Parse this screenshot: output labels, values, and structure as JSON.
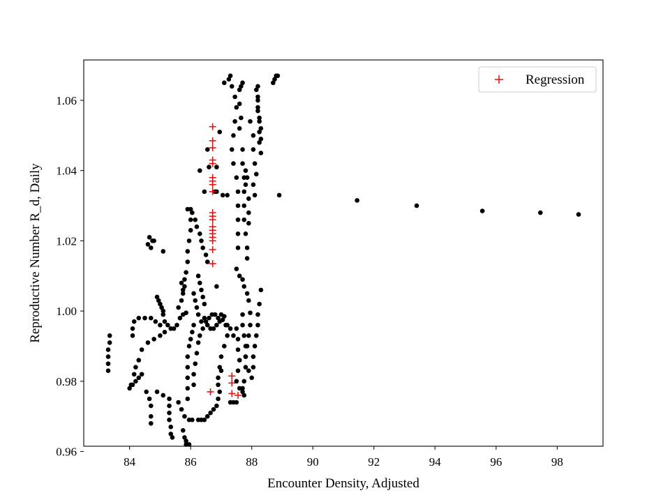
{
  "chart_data": {
    "type": "scatter",
    "title": "",
    "xlabel": "Encounter Density, Adjusted",
    "ylabel": "Reproductive Number R_d, Daily",
    "xlim": [
      82.5,
      99.5
    ],
    "ylim": [
      0.9615,
      1.0715
    ],
    "x_ticks": [
      84,
      86,
      88,
      90,
      92,
      94,
      96,
      98
    ],
    "y_ticks": [
      0.96,
      0.98,
      1.0,
      1.02,
      1.04,
      1.06
    ],
    "x_tick_labels": [
      "84",
      "86",
      "88",
      "90",
      "92",
      "94",
      "96",
      "98"
    ],
    "y_tick_labels": [
      "0.96",
      "0.98",
      "1.00",
      "1.02",
      "1.04",
      "1.06"
    ],
    "grid": false,
    "legend": {
      "position": "top-right",
      "entries": [
        "Regression"
      ]
    },
    "colors": {
      "data": "#000000",
      "regression": "#ff0000"
    },
    "series": [
      {
        "marker": "dot",
        "color": "#000000",
        "points": [
          [
            83.3,
            0.983
          ],
          [
            83.3,
            0.985
          ],
          [
            83.3,
            0.987
          ],
          [
            83.3,
            0.989
          ],
          [
            83.35,
            0.991
          ],
          [
            83.35,
            0.993
          ],
          [
            84.1,
            0.993
          ],
          [
            84.1,
            0.995
          ],
          [
            84.15,
            0.997
          ],
          [
            84.3,
            0.998
          ],
          [
            84.5,
            0.998
          ],
          [
            84.7,
            0.998
          ],
          [
            84.85,
            0.997
          ],
          [
            85.0,
            0.996
          ],
          [
            84.6,
            1.019
          ],
          [
            84.7,
            1.018
          ],
          [
            84.65,
            1.021
          ],
          [
            84.75,
            1.02
          ],
          [
            84.8,
            1.02
          ],
          [
            85.1,
            1.017
          ],
          [
            84.9,
            1.004
          ],
          [
            84.95,
            1.003
          ],
          [
            85.0,
            1.002
          ],
          [
            85.05,
            1.001
          ],
          [
            85.1,
            1.0
          ],
          [
            85.1,
            0.999
          ],
          [
            85.15,
            0.997
          ],
          [
            85.25,
            0.996
          ],
          [
            85.35,
            0.995
          ],
          [
            85.45,
            0.995
          ],
          [
            85.55,
            0.996
          ],
          [
            85.65,
            0.998
          ],
          [
            85.75,
            0.999
          ],
          [
            85.85,
            0.9995
          ],
          [
            84.6,
            0.991
          ],
          [
            84.8,
            0.992
          ],
          [
            85.0,
            0.993
          ],
          [
            85.15,
            0.994
          ],
          [
            84.4,
            0.989
          ],
          [
            84.3,
            0.986
          ],
          [
            84.2,
            0.984
          ],
          [
            84.15,
            0.982
          ],
          [
            84.05,
            0.979
          ],
          [
            84.0,
            0.978
          ],
          [
            84.1,
            0.979
          ],
          [
            84.2,
            0.98
          ],
          [
            84.3,
            0.981
          ],
          [
            84.4,
            0.982
          ],
          [
            84.55,
            0.977
          ],
          [
            84.65,
            0.975
          ],
          [
            84.7,
            0.973
          ],
          [
            84.7,
            0.97
          ],
          [
            84.7,
            0.968
          ],
          [
            84.9,
            0.977
          ],
          [
            85.1,
            0.976
          ],
          [
            85.3,
            0.975
          ],
          [
            85.3,
            0.973
          ],
          [
            85.3,
            0.971
          ],
          [
            85.3,
            0.969
          ],
          [
            85.35,
            0.967
          ],
          [
            85.35,
            0.965
          ],
          [
            85.4,
            0.964
          ],
          [
            85.6,
            0.974
          ],
          [
            85.7,
            0.972
          ],
          [
            85.8,
            0.97
          ],
          [
            85.95,
            0.969
          ],
          [
            86.05,
            0.969
          ],
          [
            85.75,
            0.966
          ],
          [
            85.8,
            0.964
          ],
          [
            85.85,
            0.963
          ],
          [
            85.95,
            0.962
          ],
          [
            85.85,
            0.962
          ],
          [
            85.9,
            0.975
          ],
          [
            85.9,
            0.978
          ],
          [
            85.9,
            0.981
          ],
          [
            85.9,
            0.984
          ],
          [
            85.9,
            0.987
          ],
          [
            85.95,
            0.99
          ],
          [
            86.0,
            0.992
          ],
          [
            86.05,
            0.994
          ],
          [
            86.1,
            0.996
          ],
          [
            86.1,
            0.979
          ],
          [
            86.1,
            0.982
          ],
          [
            86.15,
            0.985
          ],
          [
            86.2,
            0.988
          ],
          [
            86.25,
            0.991
          ],
          [
            86.3,
            0.993
          ],
          [
            85.6,
            1.001
          ],
          [
            85.7,
            1.003
          ],
          [
            85.75,
            1.005
          ],
          [
            85.8,
            1.007
          ],
          [
            85.8,
            1.009
          ],
          [
            85.85,
            1.011
          ],
          [
            85.9,
            1.014
          ],
          [
            85.9,
            1.017
          ],
          [
            85.95,
            1.02
          ],
          [
            86.0,
            1.023
          ],
          [
            86.0,
            1.026
          ],
          [
            86.0,
            1.029
          ],
          [
            85.7,
            1.008
          ],
          [
            85.75,
            1.006
          ],
          [
            86.1,
            1.005
          ],
          [
            86.15,
            1.003
          ],
          [
            86.2,
            1.001
          ],
          [
            86.25,
            0.999
          ],
          [
            86.35,
            0.997
          ],
          [
            86.4,
            0.995
          ],
          [
            85.9,
            1.029
          ],
          [
            86.05,
            1.028
          ],
          [
            86.15,
            1.026
          ],
          [
            86.2,
            1.024
          ],
          [
            86.3,
            1.022
          ],
          [
            86.35,
            1.02
          ],
          [
            86.4,
            1.018
          ],
          [
            86.5,
            1.016
          ],
          [
            86.55,
            1.014
          ],
          [
            86.25,
            1.01
          ],
          [
            86.3,
            1.008
          ],
          [
            86.35,
            1.006
          ],
          [
            86.4,
            1.004
          ],
          [
            86.45,
            1.002
          ],
          [
            86.3,
            1.04
          ],
          [
            86.45,
            1.034
          ],
          [
            86.55,
            1.046
          ],
          [
            86.6,
            1.041
          ],
          [
            86.45,
            0.998
          ],
          [
            86.55,
            0.996
          ],
          [
            86.65,
            0.995
          ],
          [
            86.75,
            0.995
          ],
          [
            86.85,
            0.996
          ],
          [
            86.95,
            0.997
          ],
          [
            87.05,
            0.9975
          ],
          [
            87.15,
            0.996
          ],
          [
            86.5,
            0.997
          ],
          [
            86.6,
            0.998
          ],
          [
            86.7,
            0.999
          ],
          [
            86.8,
            0.999
          ],
          [
            86.9,
            0.998
          ],
          [
            87.0,
            0.999
          ],
          [
            87.1,
            0.9985
          ],
          [
            87.2,
            0.996
          ],
          [
            87.3,
            0.995
          ],
          [
            87.4,
            0.993
          ],
          [
            87.2,
            0.993
          ],
          [
            87.1,
            0.99
          ],
          [
            87.0,
            0.987
          ],
          [
            86.95,
            0.984
          ],
          [
            86.9,
            0.981
          ],
          [
            86.9,
            0.979
          ],
          [
            86.95,
            0.977
          ],
          [
            86.9,
            0.975
          ],
          [
            86.85,
            0.973
          ],
          [
            86.75,
            0.972
          ],
          [
            86.65,
            0.971
          ],
          [
            86.55,
            0.97
          ],
          [
            86.45,
            0.969
          ],
          [
            86.35,
            0.969
          ],
          [
            86.25,
            0.969
          ],
          [
            87.0,
            0.983
          ],
          [
            87.3,
            0.974
          ],
          [
            87.4,
            0.974
          ],
          [
            87.5,
            0.974
          ],
          [
            86.85,
            1.007
          ],
          [
            86.95,
            1.051
          ],
          [
            86.85,
            1.041
          ],
          [
            86.8,
            1.034
          ],
          [
            86.85,
            1.034
          ],
          [
            87.05,
            1.033
          ],
          [
            87.2,
            1.033
          ],
          [
            87.1,
            1.065
          ],
          [
            87.25,
            1.066
          ],
          [
            87.3,
            1.067
          ],
          [
            87.35,
            1.064
          ],
          [
            87.45,
            1.061
          ],
          [
            87.5,
            1.058
          ],
          [
            87.45,
            1.054
          ],
          [
            87.4,
            1.05
          ],
          [
            87.35,
            1.046
          ],
          [
            87.4,
            1.042
          ],
          [
            87.5,
            1.038
          ],
          [
            87.55,
            1.034
          ],
          [
            87.55,
            1.03
          ],
          [
            87.55,
            1.026
          ],
          [
            87.55,
            1.022
          ],
          [
            87.55,
            1.018
          ],
          [
            87.6,
            1.063
          ],
          [
            87.65,
            1.064
          ],
          [
            87.7,
            1.065
          ],
          [
            87.6,
            1.059
          ],
          [
            87.65,
            1.055
          ],
          [
            87.6,
            1.052
          ],
          [
            87.7,
            1.046
          ],
          [
            87.7,
            1.042
          ],
          [
            87.75,
            1.038
          ],
          [
            87.75,
            1.034
          ],
          [
            87.75,
            1.03
          ],
          [
            87.75,
            1.026
          ],
          [
            87.8,
            1.022
          ],
          [
            87.85,
            1.018
          ],
          [
            87.85,
            1.015
          ],
          [
            87.8,
            1.04
          ],
          [
            87.85,
            1.038
          ],
          [
            87.8,
            1.036
          ],
          [
            87.9,
            1.032
          ],
          [
            87.9,
            1.028
          ],
          [
            87.9,
            1.025
          ],
          [
            87.5,
            1.012
          ],
          [
            87.6,
            1.01
          ],
          [
            87.7,
            1.009
          ],
          [
            87.75,
            1.007
          ],
          [
            87.85,
            1.005
          ],
          [
            87.9,
            1.003
          ],
          [
            87.7,
            0.999
          ],
          [
            87.7,
            0.996
          ],
          [
            87.75,
            0.993
          ],
          [
            87.8,
            0.99
          ],
          [
            87.8,
            0.987
          ],
          [
            87.9,
            0.983
          ],
          [
            88.0,
            0.981
          ],
          [
            87.5,
            0.995
          ],
          [
            87.55,
            0.992
          ],
          [
            87.55,
            0.989
          ],
          [
            87.6,
            0.986
          ],
          [
            87.55,
            0.983
          ],
          [
            87.5,
            0.98
          ],
          [
            87.6,
            0.978
          ],
          [
            87.7,
            0.977
          ],
          [
            87.95,
            0.9995
          ],
          [
            87.95,
            0.996
          ],
          [
            87.9,
            0.993
          ],
          [
            87.85,
            0.99
          ],
          [
            87.8,
            0.987
          ],
          [
            87.8,
            0.984
          ],
          [
            87.75,
            0.98
          ],
          [
            87.7,
            0.978
          ],
          [
            87.75,
            0.976
          ],
          [
            88.05,
            0.984
          ],
          [
            88.05,
            0.987
          ],
          [
            88.1,
            0.99
          ],
          [
            88.15,
            0.993
          ],
          [
            88.2,
            0.996
          ],
          [
            88.2,
            0.999
          ],
          [
            88.25,
            1.002
          ],
          [
            88.3,
            1.006
          ],
          [
            87.95,
            1.054
          ],
          [
            88.05,
            1.05
          ],
          [
            88.05,
            1.046
          ],
          [
            88.1,
            1.042
          ],
          [
            88.15,
            1.039
          ],
          [
            88.05,
            1.036
          ],
          [
            88.1,
            1.033
          ],
          [
            88.15,
            1.063
          ],
          [
            88.2,
            1.06
          ],
          [
            88.2,
            1.057
          ],
          [
            88.25,
            1.054
          ],
          [
            88.25,
            1.051
          ],
          [
            88.25,
            1.048
          ],
          [
            88.3,
            1.045
          ],
          [
            88.2,
            1.064
          ],
          [
            88.2,
            1.061
          ],
          [
            88.2,
            1.058
          ],
          [
            88.25,
            1.055
          ],
          [
            88.3,
            1.052
          ],
          [
            88.3,
            1.049
          ],
          [
            88.7,
            1.065
          ],
          [
            88.75,
            1.066
          ],
          [
            88.8,
            1.067
          ],
          [
            88.85,
            1.067
          ],
          [
            88.9,
            1.033
          ],
          [
            91.45,
            1.0315
          ],
          [
            93.4,
            1.03
          ],
          [
            95.55,
            1.0285
          ],
          [
            97.45,
            1.028
          ],
          [
            98.7,
            1.0275
          ]
        ]
      },
      {
        "name": "Regression",
        "marker": "plus",
        "color": "#ff0000",
        "points": [
          [
            86.65,
            0.977
          ],
          [
            86.72,
            1.0135
          ],
          [
            86.72,
            1.0175
          ],
          [
            86.72,
            1.02
          ],
          [
            86.72,
            1.021
          ],
          [
            86.72,
            1.022
          ],
          [
            86.72,
            1.023
          ],
          [
            86.72,
            1.024
          ],
          [
            86.72,
            1.026
          ],
          [
            86.72,
            1.027
          ],
          [
            86.72,
            1.028
          ],
          [
            86.72,
            1.034
          ],
          [
            86.72,
            1.036
          ],
          [
            86.72,
            1.037
          ],
          [
            86.72,
            1.038
          ],
          [
            86.72,
            1.042
          ],
          [
            86.72,
            1.043
          ],
          [
            86.72,
            1.0465
          ],
          [
            86.72,
            1.0485
          ],
          [
            86.72,
            1.0525
          ],
          [
            87.35,
            0.9815
          ],
          [
            87.35,
            0.9795
          ],
          [
            87.35,
            0.9765
          ],
          [
            87.55,
            0.976
          ]
        ]
      }
    ]
  }
}
